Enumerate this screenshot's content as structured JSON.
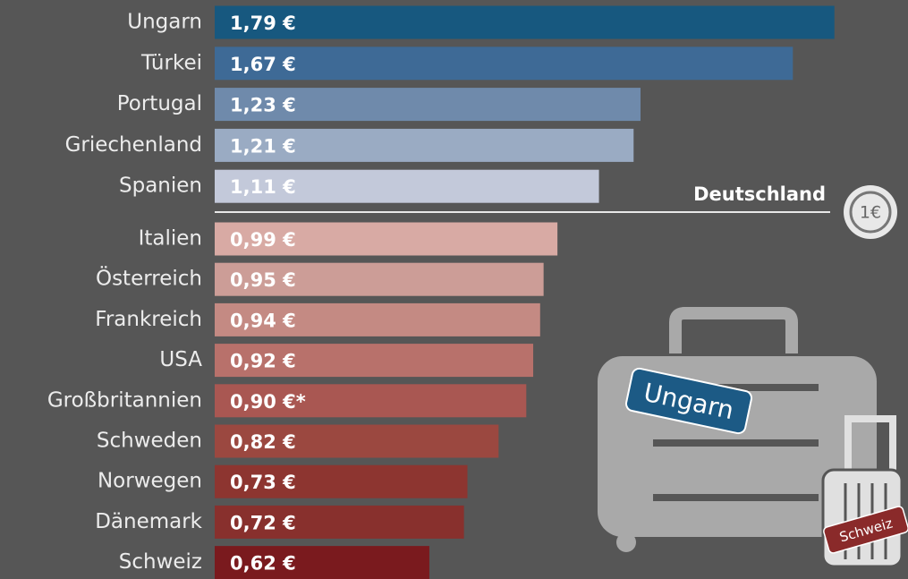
{
  "chart_data": {
    "type": "bar",
    "orientation": "horizontal",
    "categories": [
      "Ungarn",
      "Türkei",
      "Portugal",
      "Griechenland",
      "Spanien",
      "Italien",
      "Österreich",
      "Frankreich",
      "USA",
      "Großbritannien",
      "Schweden",
      "Norwegen",
      "Dänemark",
      "Schweiz"
    ],
    "values": [
      1.79,
      1.67,
      1.23,
      1.21,
      1.11,
      0.99,
      0.95,
      0.94,
      0.92,
      0.9,
      0.82,
      0.73,
      0.72,
      0.62
    ],
    "value_labels": [
      "1,79 €",
      "1,67 €",
      "1,23 €",
      "1,21 €",
      "1,11 €",
      "0,99 €",
      "0,95 €",
      "0,94 €",
      "0,92 €",
      "0,90 €*",
      "0,82 €",
      "0,73 €",
      "0,72 €",
      "0,62 €"
    ],
    "colors": [
      "#17587f",
      "#3e6a96",
      "#6f8aab",
      "#9aabc3",
      "#c3c9da",
      "#d8aaa4",
      "#cc9d97",
      "#c48a83",
      "#b8716b",
      "#a95752",
      "#9b4840",
      "#8d3530",
      "#88302d",
      "#7a1a1e"
    ],
    "xlim": [
      0,
      2
    ],
    "reference": {
      "label": "Deutschland",
      "badge": "1€"
    },
    "tags": [
      "Ungarn",
      "Schweiz"
    ]
  }
}
